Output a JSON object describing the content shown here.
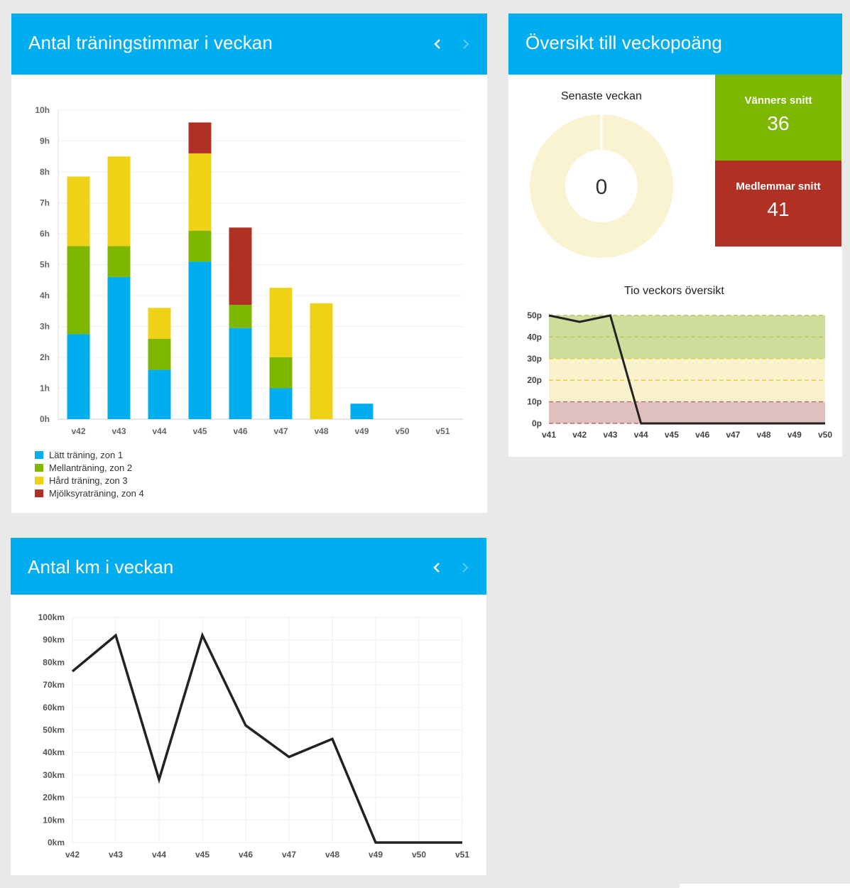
{
  "hours_panel": {
    "title": "Antal träningstimmar i veckan",
    "prev_icon": "chevron-left-icon",
    "next_icon": "chevron-right-icon",
    "legend": [
      {
        "label": "Lätt träning, zon 1",
        "color": "#00aeef"
      },
      {
        "label": "Mellanträning, zon 2",
        "color": "#7db700"
      },
      {
        "label": "Hård träning, zon 3",
        "color": "#eed216"
      },
      {
        "label": "Mjölksyraträning, zon 4",
        "color": "#b03024"
      }
    ]
  },
  "points_panel": {
    "title": "Översikt till veckopoäng",
    "latest_week_title": "Senaste veckan",
    "latest_week_value": "0",
    "friends_avg": {
      "label": "Vänners snitt",
      "value": "36",
      "color": "#7db700"
    },
    "members_avg": {
      "label": "Medlemmar snitt",
      "value": "41",
      "color": "#b03024"
    },
    "ten_week_title": "Tio veckors översikt"
  },
  "km_panel": {
    "title": "Antal km i veckan",
    "prev_icon": "chevron-left-icon",
    "next_icon": "chevron-right-icon"
  },
  "chart_data": [
    {
      "type": "bar",
      "stacked": true,
      "title": "Antal träningstimmar i veckan",
      "categories": [
        "v42",
        "v43",
        "v44",
        "v45",
        "v46",
        "v47",
        "v48",
        "v49",
        "v50",
        "v51"
      ],
      "yticks": [
        "0h",
        "1h",
        "2h",
        "3h",
        "4h",
        "5h",
        "6h",
        "7h",
        "8h",
        "9h",
        "10h"
      ],
      "ylim": [
        0,
        10
      ],
      "series": [
        {
          "name": "Lätt träning, zon 1",
          "color": "#00aeef",
          "values": [
            2.75,
            4.6,
            1.6,
            5.1,
            2.95,
            1.0,
            0,
            0.5,
            0,
            0
          ]
        },
        {
          "name": "Mellanträning, zon 2",
          "color": "#7db700",
          "values": [
            2.85,
            1.0,
            1.0,
            1.0,
            0.75,
            1.0,
            0,
            0,
            0,
            0
          ]
        },
        {
          "name": "Hård träning, zon 3",
          "color": "#eed216",
          "values": [
            2.25,
            2.9,
            1.0,
            2.5,
            0,
            2.25,
            3.75,
            0,
            0,
            0
          ]
        },
        {
          "name": "Mjölksyraträning, zon 4",
          "color": "#b03024",
          "values": [
            0,
            0,
            0,
            1.0,
            2.5,
            0,
            0,
            0,
            0,
            0
          ]
        }
      ]
    },
    {
      "type": "pie",
      "title": "Senaste veckan",
      "values": [
        0
      ],
      "center_label": "0"
    },
    {
      "type": "line",
      "title": "Tio veckors översikt",
      "x": [
        "v41",
        "v42",
        "v43",
        "v44",
        "v45",
        "v46",
        "v47",
        "v48",
        "v49",
        "v50"
      ],
      "values": [
        50,
        47,
        50,
        0,
        0,
        0,
        0,
        0,
        0,
        0
      ],
      "yticks": [
        "0p",
        "10p",
        "20p",
        "30p",
        "40p",
        "50p"
      ],
      "ylim": [
        0,
        50
      ],
      "bands": [
        {
          "from": 0,
          "to": 10,
          "color": "#e0c0be"
        },
        {
          "from": 10,
          "to": 30,
          "color": "#faf2cc"
        },
        {
          "from": 30,
          "to": 50,
          "color": "#cfdd9c"
        }
      ]
    },
    {
      "type": "line",
      "title": "Antal km i veckan",
      "x": [
        "v42",
        "v43",
        "v44",
        "v45",
        "v46",
        "v47",
        "v48",
        "v49",
        "v50",
        "v51"
      ],
      "values": [
        76,
        92,
        28,
        92,
        52,
        38,
        46,
        0,
        0,
        0
      ],
      "yticks": [
        "0km",
        "10km",
        "20km",
        "30km",
        "40km",
        "50km",
        "60km",
        "70km",
        "80km",
        "90km",
        "100km"
      ],
      "ylim": [
        0,
        100
      ]
    }
  ]
}
